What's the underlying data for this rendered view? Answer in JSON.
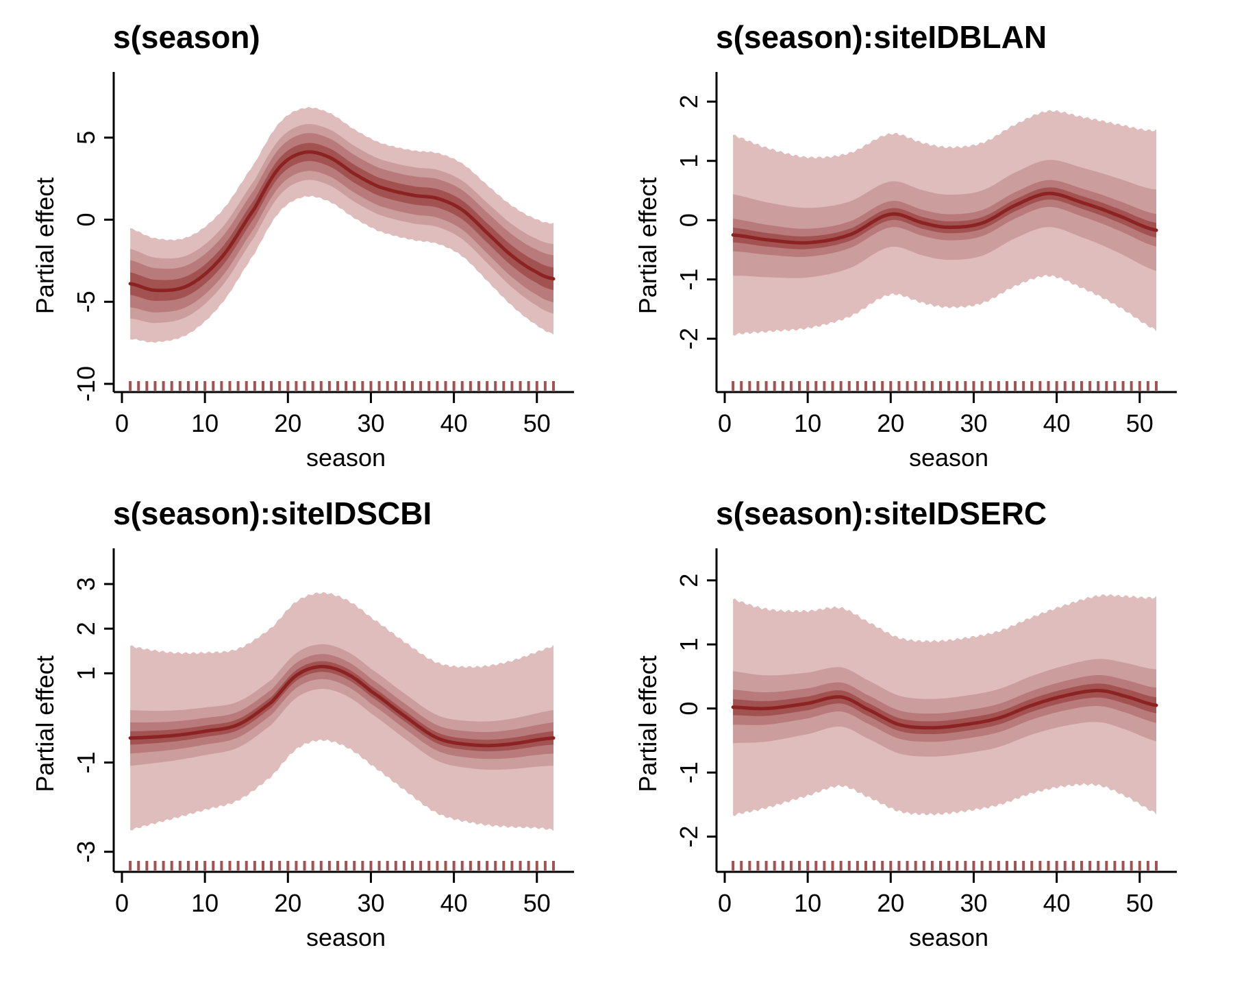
{
  "colors": {
    "line": "#8b2323",
    "band_inner": "#a35252",
    "band_2": "#b87a7a",
    "band_3": "#cc9d9d",
    "band_outer": "#dfbdbd",
    "rug": "#a35252",
    "axis": "#000000"
  },
  "chart_data": [
    {
      "type": "line",
      "title": "s(season)",
      "xlabel": "season",
      "ylabel": "Partial effect",
      "xlim": [
        0,
        52
      ],
      "ylim": [
        -10.5,
        9
      ],
      "xticks": [
        0,
        10,
        20,
        30,
        40,
        50
      ],
      "yticks": [
        -10,
        -5,
        0,
        5
      ],
      "x": [
        1,
        4,
        8,
        12,
        16,
        19,
        22,
        25,
        28,
        31,
        35,
        38,
        41,
        44,
        47,
        50,
        52
      ],
      "y": [
        -3.9,
        -4.3,
        -4.0,
        -2.3,
        0.7,
        3.2,
        4.1,
        3.8,
        2.8,
        2.0,
        1.5,
        1.3,
        0.6,
        -0.8,
        -2.2,
        -3.2,
        -3.6
      ],
      "band_halfwidths": [
        0.55,
        1.15,
        1.7,
        2.7
      ],
      "rug": "weekly, 1–52"
    },
    {
      "type": "line",
      "title": "s(season):siteIDBLAN",
      "xlabel": "season",
      "ylabel": "Partial effect",
      "xlim": [
        0,
        52
      ],
      "ylim": [
        -2.9,
        2.5
      ],
      "xticks": [
        0,
        10,
        20,
        30,
        40,
        50
      ],
      "yticks": [
        -2,
        -1,
        0,
        1,
        2
      ],
      "x": [
        1,
        5,
        10,
        15,
        20,
        24,
        27,
        31,
        35,
        39,
        43,
        47,
        52
      ],
      "y": [
        -0.25,
        -0.33,
        -0.38,
        -0.25,
        0.1,
        -0.05,
        -0.12,
        -0.05,
        0.25,
        0.45,
        0.3,
        0.1,
        -0.17
      ],
      "band_halfwidths": [
        0.1,
        0.22,
        0.55,
        1.35
      ],
      "rug": "weekly, 1–52"
    },
    {
      "type": "line",
      "title": "s(season):siteIDSCBI",
      "xlabel": "season",
      "ylabel": "Partial effect",
      "xlim": [
        0,
        52
      ],
      "ylim": [
        -3.45,
        3.8
      ],
      "xticks": [
        0,
        10,
        20,
        30,
        40,
        50
      ],
      "yticks": [
        -3,
        -1,
        1,
        2,
        3
      ],
      "x": [
        1,
        6,
        10,
        14,
        18,
        21,
        24,
        27,
        30,
        34,
        38,
        42,
        46,
        52
      ],
      "y": [
        -0.45,
        -0.4,
        -0.3,
        -0.15,
        0.35,
        0.95,
        1.15,
        1.0,
        0.6,
        0.05,
        -0.45,
        -0.6,
        -0.6,
        -0.45
      ],
      "band_halfwidths": [
        0.12,
        0.28,
        0.5,
        1.65
      ],
      "rug": "weekly, 1–52"
    },
    {
      "type": "line",
      "title": "s(season):siteIDSERC",
      "xlabel": "season",
      "ylabel": "Partial effect",
      "xlim": [
        0,
        52
      ],
      "ylim": [
        -2.55,
        2.5
      ],
      "xticks": [
        0,
        10,
        20,
        30,
        40,
        50
      ],
      "yticks": [
        -2,
        -1,
        0,
        1,
        2
      ],
      "x": [
        1,
        5,
        10,
        14,
        17,
        21,
        25,
        29,
        33,
        37,
        41,
        45,
        48,
        52
      ],
      "y": [
        0.02,
        0.0,
        0.08,
        0.18,
        0.0,
        -0.25,
        -0.3,
        -0.25,
        -0.15,
        0.05,
        0.2,
        0.28,
        0.2,
        0.05
      ],
      "band_halfwidths": [
        0.1,
        0.22,
        0.45,
        1.35
      ],
      "rug": "weekly, 1–52"
    }
  ]
}
